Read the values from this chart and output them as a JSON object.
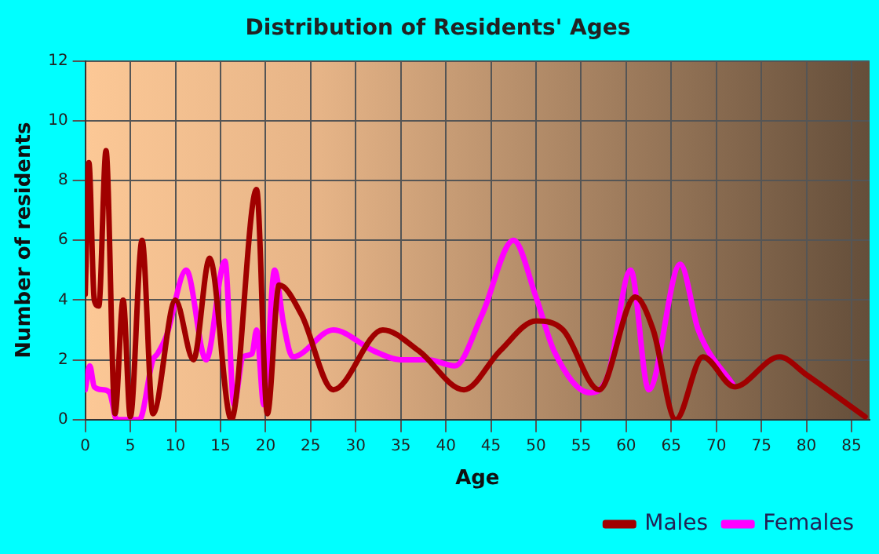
{
  "chart_data": {
    "type": "line",
    "title": "Distribution of Residents' Ages",
    "xlabel": "Age",
    "ylabel": "Number of residents",
    "xlim": [
      0,
      87
    ],
    "xticks": [
      0,
      5,
      10,
      15,
      20,
      25,
      30,
      35,
      40,
      45,
      50,
      55,
      60,
      65,
      70,
      75,
      80,
      85
    ],
    "ylim": [
      0,
      12
    ],
    "yticks": [
      0,
      2,
      4,
      6,
      8,
      10,
      12
    ],
    "grid": true,
    "legend": "bottom right",
    "marker": "none",
    "line_style": "solid",
    "series": [
      {
        "name": "Males",
        "color": "#a00000",
        "x": [
          0,
          0.4,
          1,
          1.5,
          2.3,
          3.3,
          4.2,
          5,
          6.3,
          7.5,
          10,
          12,
          13.8,
          16.2,
          19,
          20.2,
          21.5,
          24,
          27.5,
          33,
          37,
          42,
          46,
          50,
          53,
          57,
          61,
          63,
          65.5,
          68.5,
          72,
          77,
          80,
          86.5
        ],
        "values": [
          4.2,
          8.6,
          4,
          3.8,
          9,
          0.2,
          4,
          0.1,
          6,
          0.2,
          4,
          2,
          5.4,
          0,
          7.7,
          0.2,
          4.5,
          3.5,
          1,
          3,
          2.3,
          1,
          2.3,
          3.3,
          3,
          1,
          4.1,
          3,
          0,
          2.1,
          1.1,
          2.1,
          1.5,
          0.1
        ]
      },
      {
        "name": "Females",
        "color": "#ff00ff",
        "x": [
          0,
          0.5,
          1,
          2,
          2.7,
          3.5,
          6,
          7.5,
          8,
          9,
          11.2,
          13.4,
          15.5,
          16.5,
          17.5,
          18.5,
          19,
          19.8,
          21,
          22,
          23,
          27.5,
          32,
          35,
          38,
          41,
          44,
          47.5,
          50,
          52,
          56,
          58,
          60.5,
          62.5,
          66,
          68,
          72
        ],
        "values": [
          1,
          1.8,
          1.1,
          1,
          0.9,
          0,
          0,
          2,
          2.2,
          2.8,
          5,
          2,
          5.3,
          0.5,
          2.1,
          2.2,
          3,
          0.5,
          5,
          3.2,
          2.1,
          3,
          2.3,
          2,
          2,
          1.8,
          3.5,
          6,
          4.1,
          2.3,
          0.9,
          1.5,
          5,
          1,
          5.2,
          3,
          1.1
        ]
      }
    ]
  }
}
